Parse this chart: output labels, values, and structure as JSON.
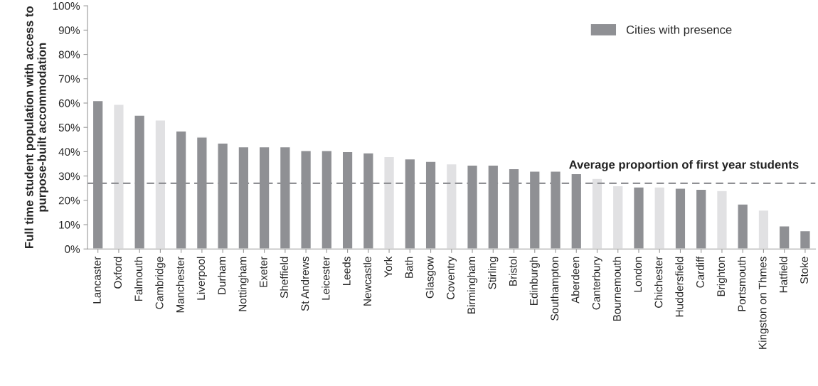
{
  "chart_data": {
    "type": "bar",
    "ylabel": "Full time student population with access to\npurpose-built accommodation",
    "categories": [
      "Lancaster",
      "Oxford",
      "Falmouth",
      "Cambridge",
      "Manchester",
      "Liverpool",
      "Durham",
      "Nottingham",
      "Exeter",
      "Sheffield",
      "St Andrews",
      "Leicester",
      "Leeds",
      "Newcastle",
      "York",
      "Bath",
      "Glasgow",
      "Coventry",
      "Birmingham",
      "Stirling",
      "Bristol",
      "Edinburgh",
      "Southampton",
      "Aberdeen",
      "Canterbury",
      "Bournemouth",
      "London",
      "Chichester",
      "Huddersfield",
      "Cardiff",
      "Brighton",
      "Portsmouth",
      "Kingston on Thmes",
      "Hatfield",
      "Stoke"
    ],
    "series": [
      {
        "name": "Cities with presence",
        "color": "#8f9094",
        "colors": [
          "#8f9094",
          "#e1e1e3",
          "#8f9094",
          "#e1e1e3",
          "#8f9094",
          "#8f9094",
          "#8f9094",
          "#8f9094",
          "#8f9094",
          "#8f9094",
          "#8f9094",
          "#8f9094",
          "#8f9094",
          "#8f9094",
          "#e1e1e3",
          "#8f9094",
          "#8f9094",
          "#e1e1e3",
          "#8f9094",
          "#8f9094",
          "#8f9094",
          "#8f9094",
          "#8f9094",
          "#8f9094",
          "#e1e1e3",
          "#e1e1e3",
          "#8f9094",
          "#e1e1e3",
          "#8f9094",
          "#8f9094",
          "#e1e1e3",
          "#8f9094",
          "#e1e1e3",
          "#8f9094",
          "#8f9094"
        ],
        "values": [
          61,
          59.5,
          55,
          53,
          48.5,
          46,
          43.5,
          42,
          42,
          42,
          40.5,
          40.5,
          40,
          39.5,
          38,
          37,
          36,
          35,
          34.5,
          34.5,
          33,
          32,
          32,
          31,
          29,
          26,
          25.5,
          25.5,
          25,
          24.5,
          24,
          18.5,
          16,
          9.5,
          7.5
        ]
      }
    ],
    "ylim": [
      0,
      100
    ],
    "yticks": [
      {
        "value": 0,
        "label": "0%"
      },
      {
        "value": 10,
        "label": "10%"
      },
      {
        "value": 20,
        "label": "20%"
      },
      {
        "value": 30,
        "label": "30%"
      },
      {
        "value": 40,
        "label": "40%"
      },
      {
        "value": 50,
        "label": "50%"
      },
      {
        "value": 60,
        "label": "60%"
      },
      {
        "value": 70,
        "label": "70%"
      },
      {
        "value": 80,
        "label": "80%"
      },
      {
        "value": 90,
        "label": "90%"
      },
      {
        "value": 100,
        "label": "100%"
      }
    ],
    "ref_lines": [
      {
        "axis": "y",
        "value": 27,
        "label": "Average proportion of first year students",
        "color": "#8f9094",
        "line_style": "dashed"
      }
    ],
    "legend": "top right",
    "grid": false
  }
}
